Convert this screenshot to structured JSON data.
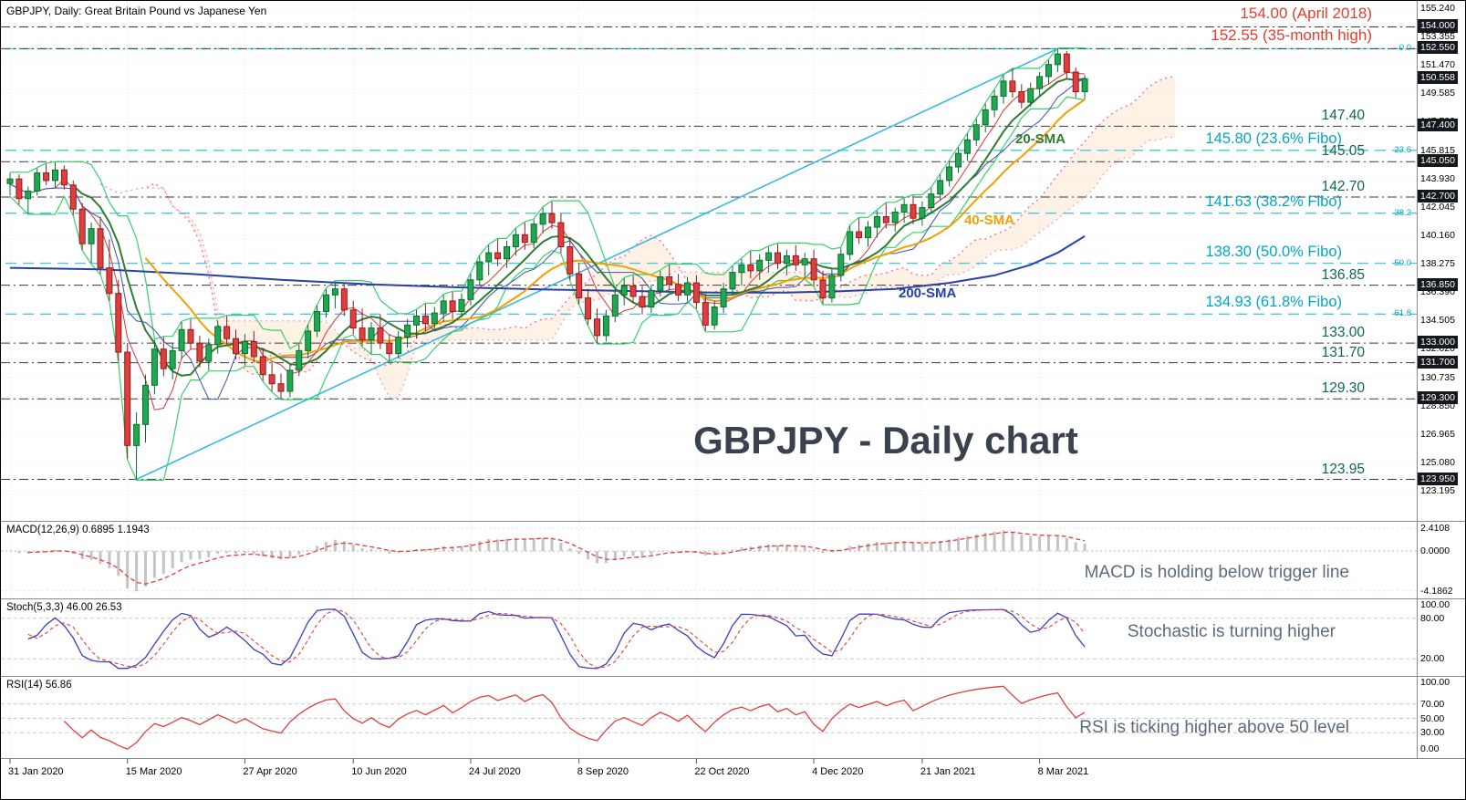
{
  "header": {
    "title": "GBPJPY, Daily:  Great Britain Pound vs Japanese Yen"
  },
  "watermark": "GBPJPY - Daily chart",
  "panels": {
    "macd": {
      "label": "MACD(12,26,9) 0.6895 1.1943",
      "annotation": "MACD is holding below trigger line",
      "axis": [
        "2.4108",
        "0.0000",
        "-4.1862"
      ]
    },
    "stoch": {
      "label": "Stoch(5,3,3) 46.00 26.53",
      "annotation": "Stochastic is turning higher",
      "axis": [
        "100.00",
        "80.00",
        "20.00"
      ]
    },
    "rsi": {
      "label": "RSI(14) 56.86",
      "annotation": "RSI is ticking higher above 50 level",
      "axis": [
        "100.00",
        "70.00",
        "50.00",
        "30.00",
        "0.00"
      ]
    }
  },
  "colors": {
    "bull": "#1fa84f",
    "bull_stroke": "#0b6b30",
    "bear": "#e03e3e",
    "bear_stroke": "#8e1d1d",
    "sma20": "#2e7d32",
    "sma40": "#f59f00",
    "sma200": "#2741a8",
    "tenkan": "#d93636",
    "kijun": "#3f51b5",
    "donchian": "#35d06a",
    "cloud_a": "#ef6ea8",
    "cloud_b": "#f4a6c6",
    "cloud_fill": "rgba(250,170,90,0.15)",
    "trendline": "#35b9e6",
    "level_line": "#3a3a3a",
    "fibo_line": "#49c8dd",
    "fibo_text": "#00a7c4",
    "red_text": "#e23e2e",
    "teal_text": "#0e6655",
    "macd_bar": "#c4c4c4",
    "macd_signal": "#e03e3e",
    "stoch_main": "#3d3dc2",
    "stoch_signal": "#e03e3e",
    "rsi": "#e03e3e"
  },
  "chart_data": {
    "type": "candlestick",
    "symbol": "GBPJPY",
    "timeframe": "Daily",
    "current_price": 150.558,
    "indicator_values": {
      "macd": "0.6895",
      "macd_signal": "1.1943",
      "stoch_k": "46.00",
      "stoch_d": "26.53",
      "rsi": "56.86"
    },
    "x_axis": {
      "dates": [
        "31 Jan 2020",
        "15 Mar 2020",
        "27 Apr 2020",
        "10 Jun 2020",
        "24 Jul 2020",
        "8 Sep 2020",
        "22 Oct 2020",
        "4 Dec 2020",
        "21 Jan 2021",
        "8 Mar 2021"
      ],
      "tick_indices": [
        0,
        13,
        26,
        38,
        51,
        63,
        76,
        89,
        101,
        114
      ]
    },
    "y_axis": {
      "min": 123.195,
      "max": 155.24,
      "tick_step": 1.885,
      "ticks": [
        "155.240",
        "153.355",
        "151.470",
        "149.585",
        "147.700",
        "145.815",
        "143.930",
        "142.045",
        "140.160",
        "138.275",
        "136.390",
        "134.505",
        "132.620",
        "130.735",
        "128.850",
        "126.965",
        "125.080",
        "123.195"
      ]
    },
    "axis_boxes": [
      "154.000",
      "152.550",
      "150.558",
      "147.400",
      "145.050",
      "142.700",
      "136.850",
      "133.000",
      "131.700",
      "129.300",
      "123.950"
    ],
    "levels": {
      "red": [
        {
          "price": 154.0,
          "label": "154.00 (April 2018)"
        },
        {
          "price": 152.55,
          "label": "152.55 (35-month high)"
        }
      ],
      "teal": [
        {
          "price": 147.4,
          "label": "147.40"
        },
        {
          "price": 145.05,
          "label": "145.05"
        },
        {
          "price": 142.7,
          "label": "142.70"
        },
        {
          "price": 136.85,
          "label": "136.85"
        },
        {
          "price": 133.0,
          "label": "133.00"
        },
        {
          "price": 131.7,
          "label": "131.70"
        },
        {
          "price": 129.3,
          "label": "129.30"
        },
        {
          "price": 123.95,
          "label": "123.95"
        }
      ],
      "fibo": [
        {
          "price": 152.55,
          "pct": "0.0",
          "label": null
        },
        {
          "price": 145.8,
          "pct": "23.6",
          "label": "145.80 (23.6% Fibo)"
        },
        {
          "price": 141.63,
          "pct": "38.2",
          "label": "141.63 (38.2% Fibo)"
        },
        {
          "price": 138.3,
          "pct": "50.0",
          "label": "138.30 (50.0% Fibo)"
        },
        {
          "price": 134.93,
          "pct": "61.8",
          "label": "134.93 (61.8% Fibo)"
        }
      ]
    },
    "sma_labels": [
      {
        "text": "20-SMA"
      },
      {
        "text": "40-SMA"
      },
      {
        "text": "200-SMA"
      }
    ],
    "trendline": {
      "from_index": 14,
      "from_price": 123.95,
      "to_index": 116,
      "to_price": 152.55
    },
    "sma200": [
      [
        0,
        138.0
      ],
      [
        10,
        137.9
      ],
      [
        20,
        137.6
      ],
      [
        30,
        137.2
      ],
      [
        40,
        136.9
      ],
      [
        50,
        136.7
      ],
      [
        60,
        136.55
      ],
      [
        70,
        136.45
      ],
      [
        78,
        136.35
      ],
      [
        86,
        136.35
      ],
      [
        92,
        136.45
      ],
      [
        98,
        136.6
      ],
      [
        104,
        137.0
      ],
      [
        109,
        137.5
      ],
      [
        113,
        138.2
      ],
      [
        116,
        139.0
      ],
      [
        119,
        140.1
      ]
    ],
    "ohlc": [
      [
        143.6,
        144.3,
        142.8,
        143.9
      ],
      [
        143.9,
        144.2,
        142.2,
        142.6
      ],
      [
        142.6,
        143.4,
        141.6,
        143.1
      ],
      [
        143.1,
        144.6,
        142.8,
        144.3
      ],
      [
        144.3,
        144.9,
        143.5,
        143.8
      ],
      [
        143.8,
        145.0,
        143.3,
        144.5
      ],
      [
        144.5,
        144.8,
        143.2,
        143.5
      ],
      [
        143.5,
        143.8,
        141.5,
        141.9
      ],
      [
        141.9,
        142.3,
        139.2,
        139.6
      ],
      [
        139.6,
        141.0,
        138.3,
        140.6
      ],
      [
        140.6,
        141.4,
        137.6,
        138.0
      ],
      [
        138.0,
        139.9,
        135.8,
        136.3
      ],
      [
        136.3,
        137.2,
        131.8,
        132.4
      ],
      [
        132.4,
        133.0,
        125.3,
        126.2
      ],
      [
        126.2,
        128.4,
        123.95,
        127.6
      ],
      [
        127.6,
        130.9,
        126.4,
        130.2
      ],
      [
        130.2,
        133.2,
        129.6,
        132.6
      ],
      [
        132.6,
        133.4,
        130.8,
        131.3
      ],
      [
        131.3,
        133.0,
        130.6,
        132.5
      ],
      [
        132.5,
        134.4,
        131.9,
        133.9
      ],
      [
        133.9,
        134.6,
        132.6,
        133.0
      ],
      [
        133.0,
        133.5,
        131.4,
        131.8
      ],
      [
        131.8,
        133.3,
        131.2,
        132.9
      ],
      [
        132.9,
        134.5,
        132.3,
        134.1
      ],
      [
        134.1,
        134.8,
        132.9,
        133.3
      ],
      [
        133.3,
        133.9,
        131.9,
        132.3
      ],
      [
        132.3,
        133.6,
        131.5,
        133.1
      ],
      [
        133.1,
        133.8,
        131.7,
        132.1
      ],
      [
        132.1,
        132.6,
        130.5,
        130.9
      ],
      [
        130.9,
        131.8,
        129.8,
        130.3
      ],
      [
        130.3,
        131.0,
        129.3,
        129.8
      ],
      [
        129.8,
        131.6,
        129.4,
        131.2
      ],
      [
        131.2,
        132.9,
        130.8,
        132.5
      ],
      [
        132.5,
        134.2,
        132.0,
        133.8
      ],
      [
        133.8,
        135.5,
        133.4,
        135.1
      ],
      [
        135.1,
        136.6,
        134.7,
        136.2
      ],
      [
        136.2,
        137.1,
        135.3,
        136.6
      ],
      [
        136.6,
        137.0,
        134.8,
        135.2
      ],
      [
        135.2,
        135.8,
        133.6,
        134.0
      ],
      [
        134.0,
        135.3,
        132.8,
        133.2
      ],
      [
        133.2,
        134.4,
        132.3,
        134.0
      ],
      [
        134.0,
        134.9,
        132.6,
        133.0
      ],
      [
        133.0,
        133.6,
        131.8,
        132.3
      ],
      [
        132.3,
        133.8,
        132.0,
        133.4
      ],
      [
        133.4,
        134.6,
        132.7,
        134.2
      ],
      [
        134.2,
        135.2,
        133.3,
        134.8
      ],
      [
        134.8,
        135.6,
        133.8,
        134.3
      ],
      [
        134.3,
        135.4,
        133.9,
        135.0
      ],
      [
        135.0,
        136.2,
        134.4,
        135.8
      ],
      [
        135.8,
        136.4,
        134.6,
        135.1
      ],
      [
        135.1,
        136.3,
        134.7,
        135.9
      ],
      [
        135.9,
        137.6,
        135.5,
        137.2
      ],
      [
        137.2,
        138.8,
        136.8,
        138.4
      ],
      [
        138.4,
        139.5,
        137.5,
        139.0
      ],
      [
        139.0,
        139.9,
        138.1,
        138.6
      ],
      [
        138.6,
        139.8,
        138.0,
        139.4
      ],
      [
        139.4,
        140.6,
        138.8,
        140.2
      ],
      [
        140.2,
        141.0,
        139.2,
        139.7
      ],
      [
        139.7,
        141.2,
        139.3,
        140.9
      ],
      [
        140.9,
        142.0,
        140.3,
        141.6
      ],
      [
        141.6,
        142.4,
        140.6,
        141.0
      ],
      [
        141.0,
        141.6,
        139.0,
        139.4
      ],
      [
        139.4,
        140.0,
        137.2,
        137.6
      ],
      [
        137.6,
        138.3,
        135.6,
        136.0
      ],
      [
        136.0,
        136.6,
        134.2,
        134.6
      ],
      [
        134.6,
        135.3,
        133.0,
        133.5
      ],
      [
        133.5,
        135.2,
        133.1,
        134.8
      ],
      [
        134.8,
        136.6,
        134.4,
        136.2
      ],
      [
        136.2,
        137.3,
        135.5,
        136.8
      ],
      [
        136.8,
        137.5,
        135.7,
        136.1
      ],
      [
        136.1,
        136.8,
        134.9,
        135.4
      ],
      [
        135.4,
        136.9,
        135.0,
        136.5
      ],
      [
        136.5,
        137.8,
        136.1,
        137.4
      ],
      [
        137.4,
        138.2,
        136.5,
        136.9
      ],
      [
        136.9,
        137.6,
        135.8,
        136.2
      ],
      [
        136.2,
        137.4,
        135.8,
        137.0
      ],
      [
        137.0,
        137.5,
        135.3,
        135.7
      ],
      [
        135.7,
        136.2,
        133.8,
        134.2
      ],
      [
        134.2,
        135.8,
        133.9,
        135.4
      ],
      [
        135.4,
        137.0,
        135.0,
        136.6
      ],
      [
        136.6,
        138.1,
        136.2,
        137.7
      ],
      [
        137.7,
        138.6,
        136.8,
        138.2
      ],
      [
        138.2,
        139.1,
        137.3,
        137.8
      ],
      [
        137.8,
        138.9,
        137.2,
        138.5
      ],
      [
        138.5,
        139.4,
        137.7,
        139.0
      ],
      [
        139.0,
        139.6,
        137.9,
        138.3
      ],
      [
        138.3,
        139.2,
        137.5,
        138.8
      ],
      [
        138.8,
        139.5,
        137.8,
        138.2
      ],
      [
        138.2,
        139.0,
        137.3,
        138.6
      ],
      [
        138.6,
        139.2,
        136.8,
        137.2
      ],
      [
        137.2,
        137.8,
        135.6,
        136.0
      ],
      [
        136.0,
        137.9,
        135.7,
        137.5
      ],
      [
        137.5,
        139.3,
        137.1,
        138.9
      ],
      [
        138.9,
        140.8,
        138.5,
        140.4
      ],
      [
        140.4,
        141.3,
        139.6,
        140.0
      ],
      [
        140.0,
        141.1,
        139.4,
        140.7
      ],
      [
        140.7,
        141.8,
        140.0,
        141.4
      ],
      [
        141.4,
        142.3,
        140.6,
        141.0
      ],
      [
        141.0,
        142.0,
        140.4,
        141.7
      ],
      [
        141.7,
        142.6,
        141.0,
        142.2
      ],
      [
        142.2,
        142.8,
        140.9,
        141.3
      ],
      [
        141.3,
        142.4,
        140.8,
        142.0
      ],
      [
        142.0,
        143.3,
        141.6,
        142.9
      ],
      [
        142.9,
        144.2,
        142.5,
        143.8
      ],
      [
        143.8,
        145.1,
        143.4,
        144.7
      ],
      [
        144.7,
        146.0,
        144.3,
        145.6
      ],
      [
        145.6,
        146.9,
        145.1,
        146.5
      ],
      [
        146.5,
        147.9,
        146.1,
        147.5
      ],
      [
        147.5,
        148.9,
        147.0,
        148.5
      ],
      [
        148.5,
        149.8,
        148.0,
        149.4
      ],
      [
        149.4,
        150.8,
        148.9,
        150.4
      ],
      [
        150.4,
        151.2,
        149.3,
        149.7
      ],
      [
        149.7,
        150.2,
        148.6,
        149.0
      ],
      [
        149.0,
        150.3,
        148.7,
        149.9
      ],
      [
        149.9,
        151.0,
        149.4,
        150.7
      ],
      [
        150.7,
        151.8,
        150.2,
        151.5
      ],
      [
        151.5,
        152.55,
        151.0,
        152.2
      ],
      [
        152.2,
        152.4,
        150.6,
        151.0
      ],
      [
        151.0,
        151.3,
        149.3,
        149.7
      ],
      [
        149.7,
        150.8,
        149.2,
        150.558
      ]
    ]
  }
}
